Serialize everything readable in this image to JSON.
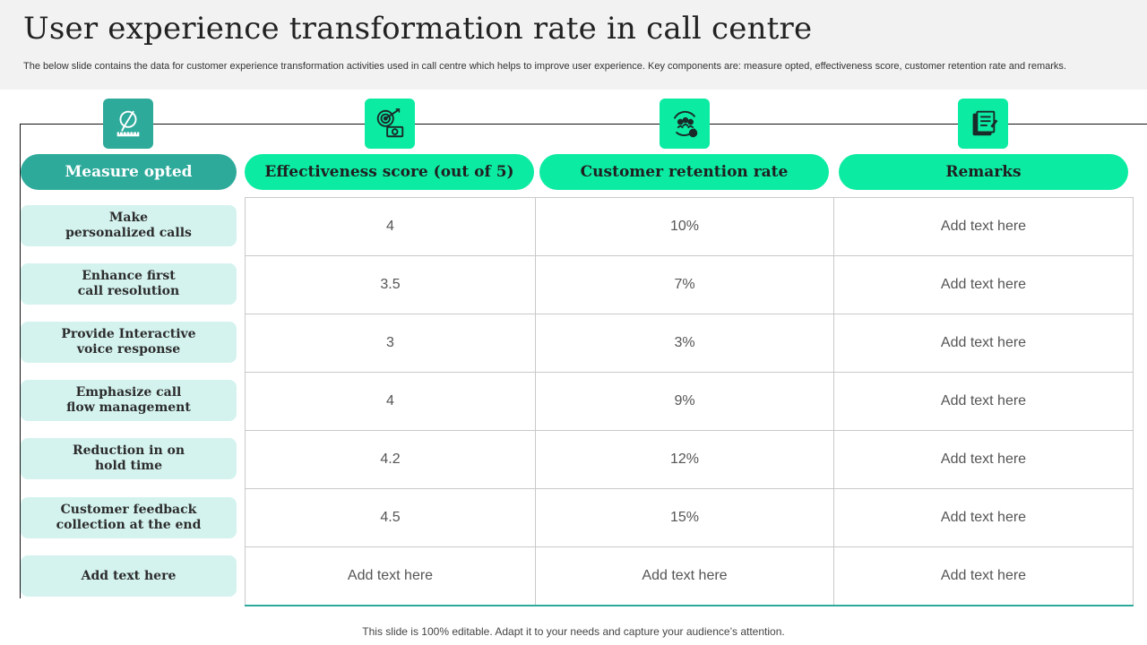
{
  "title": "User experience transformation rate in call centre",
  "subtitle": "The below slide contains the data for customer experience transformation activities used in call centre which helps to improve user experience. Key components are: measure opted, effectiveness score, customer retention rate and remarks.",
  "colors": {
    "accent_dark": "#2eaa9b",
    "accent_bright": "#0ceba2",
    "row_label_bg": "#d4f3ef",
    "header_bg": "#f2f2f2"
  },
  "columns": [
    {
      "label": "Measure opted",
      "icon": "pen-ruler-icon"
    },
    {
      "label": "Effectiveness score (out of 5)",
      "icon": "target-money-icon"
    },
    {
      "label": "Customer retention rate",
      "icon": "customer-cycle-icon"
    },
    {
      "label": "Remarks",
      "icon": "notes-icon"
    }
  ],
  "rows": [
    {
      "measure": "Make\npersonalized calls",
      "score": "4",
      "retention": "10%",
      "remarks": "Add text here"
    },
    {
      "measure": "Enhance first\ncall resolution",
      "score": "3.5",
      "retention": "7%",
      "remarks": "Add text here"
    },
    {
      "measure": "Provide Interactive\nvoice response",
      "score": "3",
      "retention": "3%",
      "remarks": "Add text here"
    },
    {
      "measure": "Emphasize call\nflow management",
      "score": "4",
      "retention": "9%",
      "remarks": "Add text here"
    },
    {
      "measure": "Reduction in on\nhold time",
      "score": "4.2",
      "retention": "12%",
      "remarks": "Add text here"
    },
    {
      "measure": "Customer feedback\ncollection at the end",
      "score": "4.5",
      "retention": "15%",
      "remarks": "Add text here"
    },
    {
      "measure": "Add text here",
      "score": "Add text here",
      "retention": "Add text here",
      "remarks": "Add text here"
    }
  ],
  "footer": "This slide is 100% editable. Adapt it to your needs and capture your audience’s attention."
}
